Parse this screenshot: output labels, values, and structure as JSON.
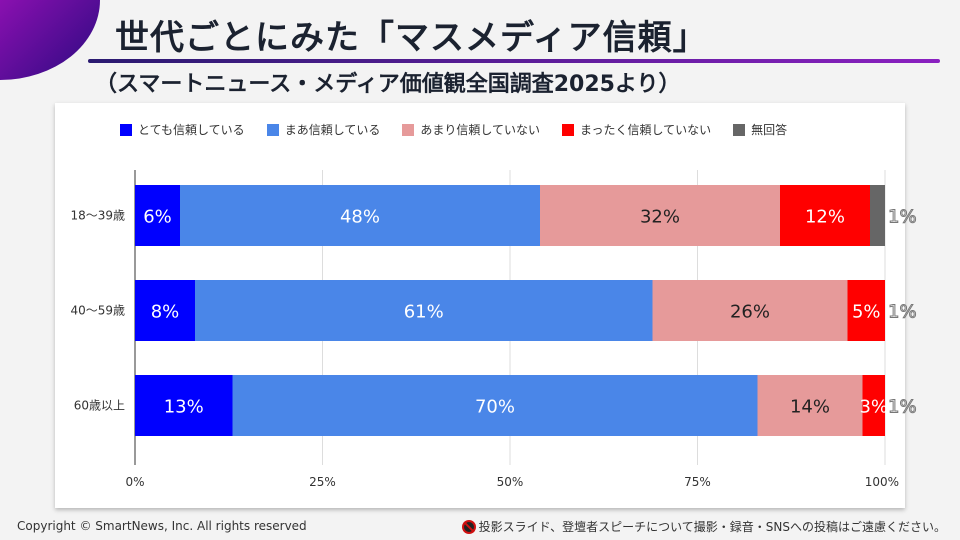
{
  "header": {
    "title": "世代ごとにみた「マスメディア信頼」",
    "subtitle": "（スマートニュース・メディア価値観全国調査2025より）"
  },
  "footer": {
    "copyright": "Copyright © SmartNews, Inc. All rights reserved",
    "notice": "投影スライド、登壇者スピーチについて撮影・録音・SNSへの投稿はご遠慮ください。",
    "notice_icon": "no-camera-icon"
  },
  "chart_data": {
    "type": "stacked-bar-horizontal",
    "categories": [
      "18〜39歳",
      "40〜59歳",
      "60歳以上"
    ],
    "series": [
      {
        "name": "とても信頼している",
        "color": "#0000ff",
        "label_color": "#ffffff",
        "values": [
          6,
          8,
          13
        ]
      },
      {
        "name": "まあ信頼している",
        "color": "#4a86e8",
        "label_color": "#ffffff",
        "values": [
          48,
          61,
          70
        ]
      },
      {
        "name": "あまり信頼していない",
        "color": "#e69a9a",
        "label_color": "#222222",
        "values": [
          32,
          26,
          14
        ]
      },
      {
        "name": "まったく信頼していない",
        "color": "#ff0000",
        "label_color": "#ffffff",
        "values": [
          12,
          5,
          3
        ]
      },
      {
        "name": "無回答",
        "color": "#666666",
        "label_color": "#888888",
        "values": [
          1,
          1,
          1
        ]
      }
    ],
    "xticks": [
      "0%",
      "25%",
      "50%",
      "75%",
      "100%"
    ],
    "xlim": [
      0,
      100
    ],
    "grid": true,
    "legend": "top"
  }
}
